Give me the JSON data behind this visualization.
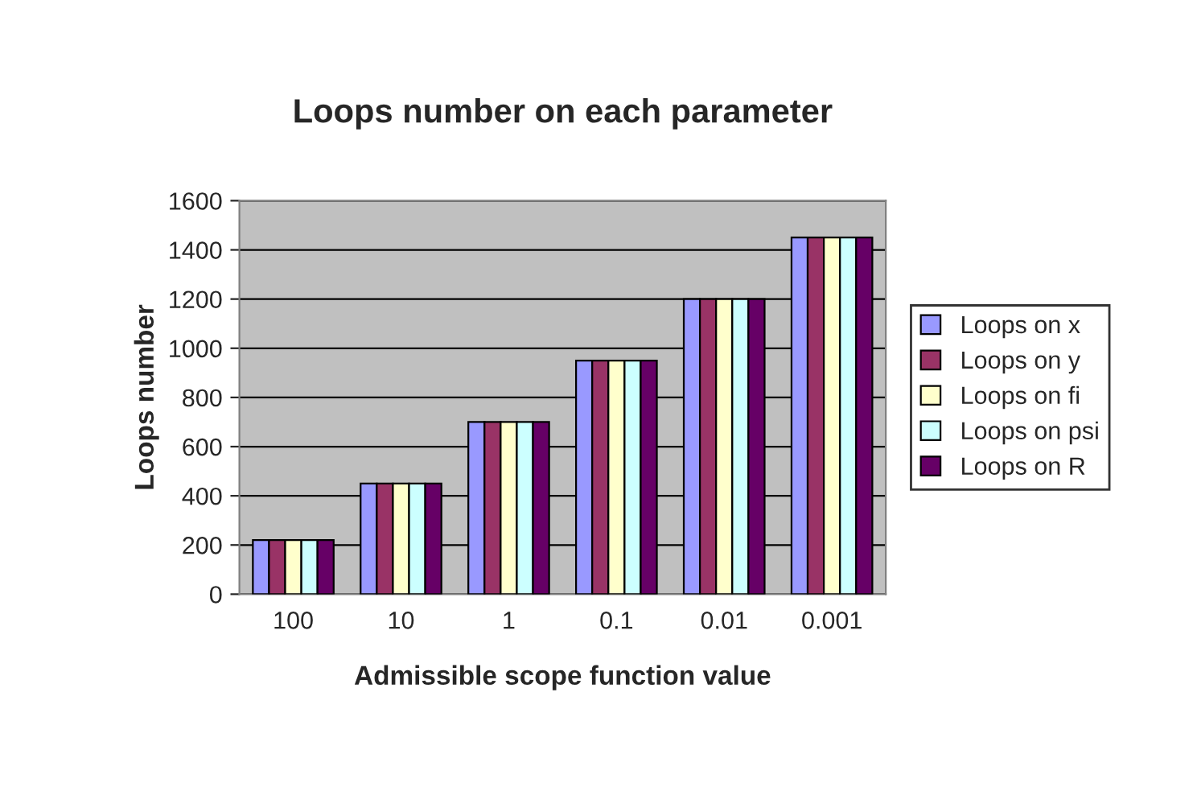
{
  "chart_data": {
    "type": "bar",
    "title": "Loops number on each parameter",
    "xlabel": "Admissible scope function value",
    "ylabel": "Loops number",
    "categories": [
      "100",
      "10",
      "1",
      "0.1",
      "0.01",
      "0.001"
    ],
    "series": [
      {
        "name": "Loops on x",
        "color": "#9999ff",
        "values": [
          220,
          450,
          700,
          950,
          1200,
          1450
        ]
      },
      {
        "name": "Loops on y",
        "color": "#993366",
        "values": [
          220,
          450,
          700,
          950,
          1200,
          1450
        ]
      },
      {
        "name": "Loops on fi",
        "color": "#ffffcc",
        "values": [
          220,
          450,
          700,
          950,
          1200,
          1450
        ]
      },
      {
        "name": "Loops on psi",
        "color": "#ccffff",
        "values": [
          220,
          450,
          700,
          950,
          1200,
          1450
        ]
      },
      {
        "name": "Loops on R",
        "color": "#660066",
        "values": [
          220,
          450,
          700,
          950,
          1200,
          1450
        ]
      }
    ],
    "ylim": [
      0,
      1600
    ],
    "yticks": [
      0,
      200,
      400,
      600,
      800,
      1000,
      1200,
      1400,
      1600
    ],
    "grid": "y",
    "legend": "right"
  }
}
